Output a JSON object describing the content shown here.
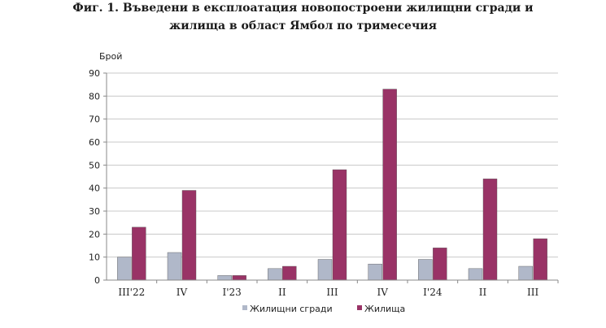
{
  "figure": {
    "title_line1": "Фиг. 1. Въведени в експлоатация новопостроени жилищни сгради и",
    "title_line2": "жилища в област Ямбол по тримесечия"
  },
  "chart_data": {
    "type": "bar",
    "title": "Фиг. 1. Въведени в експлоатация новопостроени жилищни сгради и жилища в област Ямбол по тримесечия",
    "ylabel": "Брой",
    "xlabel": "",
    "ylim": [
      0,
      90
    ],
    "yticks": [
      0,
      10,
      20,
      30,
      40,
      50,
      60,
      70,
      80,
      90
    ],
    "grid": true,
    "legend_position": "bottom",
    "categories": [
      "III'22",
      "IV",
      "I'23",
      "II",
      "III",
      "IV",
      "I'24",
      "II",
      "III"
    ],
    "series": [
      {
        "name": "Жилищни сгради",
        "color": "#b0b8c9",
        "values": [
          10,
          12,
          2,
          5,
          9,
          7,
          9,
          5,
          6
        ]
      },
      {
        "name": "Жилища",
        "color": "#993366",
        "values": [
          23,
          39,
          2,
          6,
          48,
          83,
          14,
          44,
          18
        ]
      }
    ]
  }
}
